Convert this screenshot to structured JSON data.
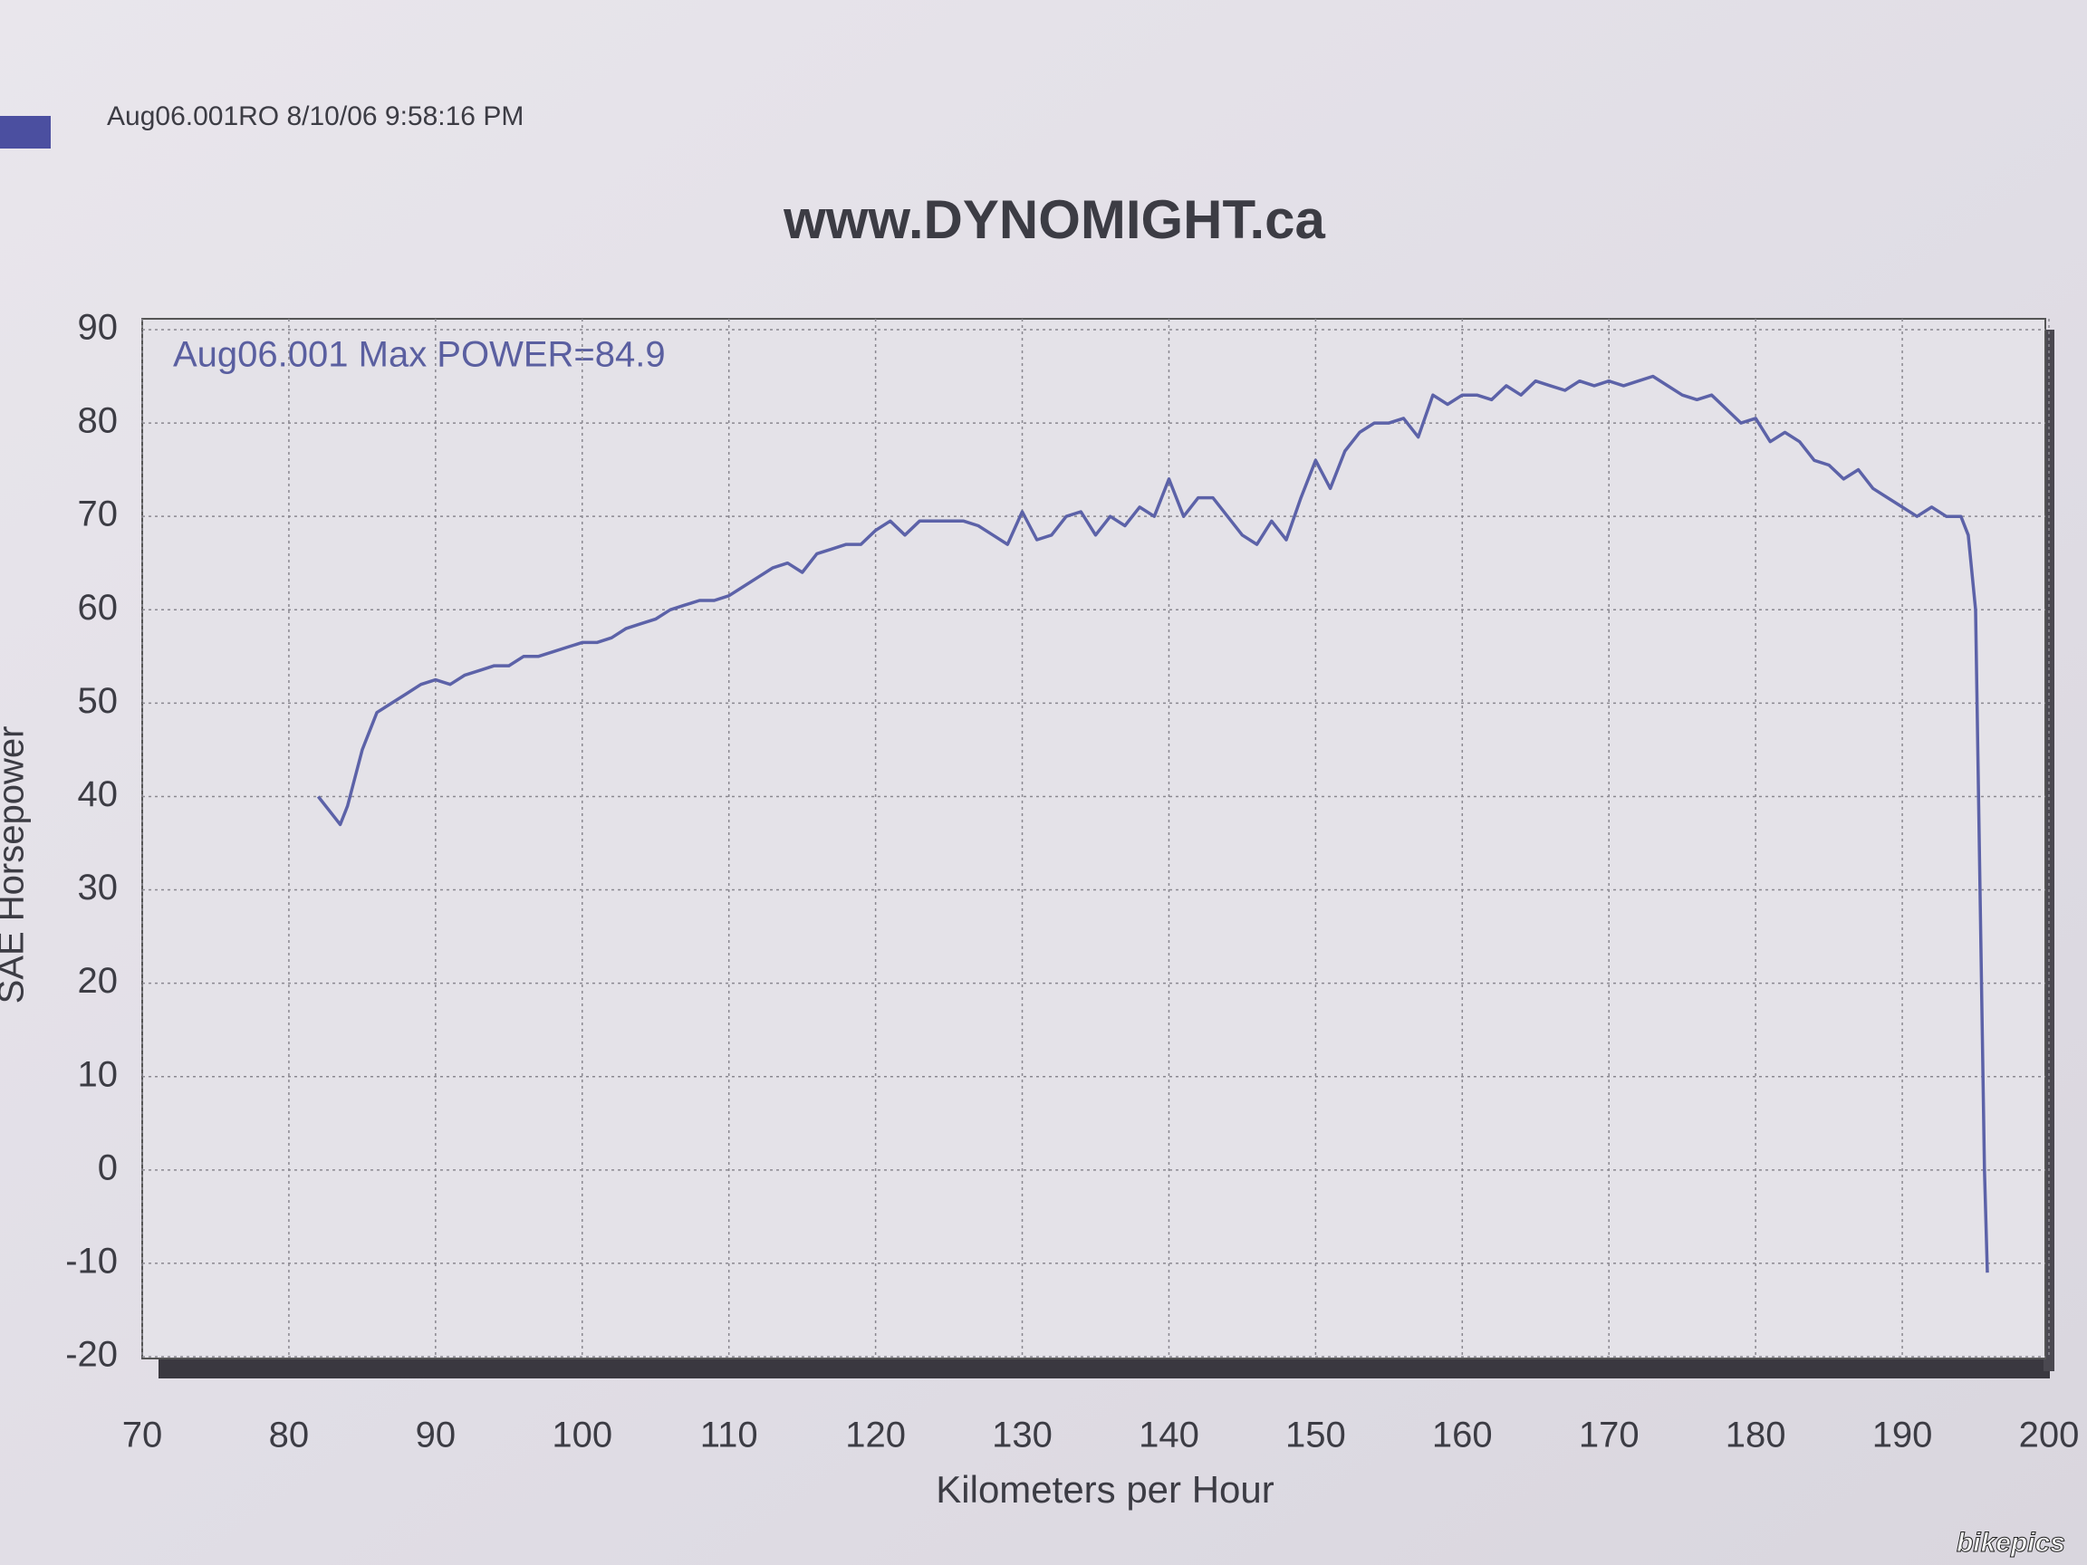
{
  "chart_data": {
    "type": "line",
    "header": "Aug06.001RO  8/10/06 9:58:16 PM",
    "title": "www.DYNOMIGHT.ca",
    "annotation": "Aug06.001  Max POWER=84.9",
    "x_label": "Kilometers per Hour",
    "y_label": "SAE Horsepower",
    "watermark": "bikepics",
    "color": "#5c62a8",
    "grid": true,
    "xlim": [
      70,
      200
    ],
    "xticks": [
      70,
      80,
      90,
      100,
      110,
      120,
      130,
      140,
      150,
      160,
      170,
      180,
      190,
      200
    ],
    "ylim": [
      -20,
      90
    ],
    "yticks": [
      -20,
      -10,
      0,
      10,
      20,
      30,
      40,
      50,
      60,
      70,
      80,
      90
    ],
    "x": [
      82,
      83,
      83.5,
      84,
      85,
      86,
      87,
      88,
      89,
      90,
      91,
      92,
      93,
      94,
      95,
      96,
      97,
      98,
      99,
      100,
      101,
      102,
      103,
      104,
      105,
      106,
      107,
      108,
      109,
      110,
      111,
      112,
      113,
      114,
      115,
      116,
      117,
      118,
      119,
      120,
      121,
      122,
      123,
      124,
      125,
      126,
      127,
      128,
      129,
      130,
      131,
      132,
      133,
      134,
      135,
      136,
      137,
      138,
      139,
      140,
      141,
      142,
      143,
      144,
      145,
      146,
      147,
      148,
      149,
      150,
      151,
      152,
      153,
      154,
      155,
      156,
      157,
      158,
      159,
      160,
      161,
      162,
      163,
      164,
      165,
      166,
      167,
      168,
      169,
      170,
      171,
      172,
      173,
      174,
      175,
      176,
      177,
      178,
      179,
      180,
      181,
      182,
      183,
      184,
      185,
      186,
      187,
      188,
      189,
      190,
      191,
      192,
      193,
      194,
      194.5,
      195,
      195.3,
      195.6,
      195.8
    ],
    "values": [
      40,
      38,
      37,
      39,
      45,
      49,
      50,
      51,
      52,
      52.5,
      52,
      53,
      53.5,
      54,
      54,
      55,
      55,
      55.5,
      56,
      56.5,
      56.5,
      57,
      58,
      58.5,
      59,
      60,
      60.5,
      61,
      61,
      61.5,
      62.5,
      63.5,
      64.5,
      65,
      64,
      66,
      66.5,
      67,
      67,
      68.5,
      69.5,
      68,
      69.5,
      69.5,
      69.5,
      69.5,
      69,
      68,
      67,
      70.5,
      67.5,
      68,
      70,
      70.5,
      68,
      70,
      69,
      71,
      70,
      74,
      70,
      72,
      72,
      70,
      68,
      67,
      69.5,
      67.5,
      72,
      76,
      73,
      77,
      79,
      80,
      80,
      80.5,
      78.5,
      83,
      82,
      83,
      83,
      82.5,
      84,
      83,
      84.5,
      84,
      83.5,
      84.5,
      84,
      84.5,
      84,
      84.5,
      85,
      84,
      83,
      82.5,
      83,
      81.5,
      80,
      80.5,
      78,
      79,
      78,
      76,
      75.5,
      74,
      75,
      73,
      72,
      71,
      70,
      71,
      70,
      70,
      68,
      60,
      30,
      0,
      -11
    ]
  }
}
